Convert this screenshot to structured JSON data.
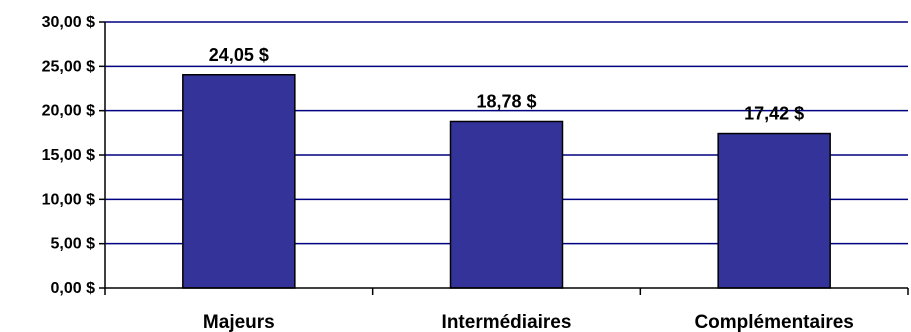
{
  "chart_data": {
    "type": "bar",
    "categories": [
      "Majeurs",
      "Intermédiaires",
      "Complémentaires"
    ],
    "values": [
      24.05,
      18.78,
      17.42
    ],
    "data_labels": [
      "24,05 $",
      "18,78 $",
      "17,42 $"
    ],
    "y_ticks": [
      0,
      5,
      10,
      15,
      20,
      25,
      30
    ],
    "y_tick_labels": [
      "0,00 $",
      "5,00 $",
      "10,00 $",
      "15,00 $",
      "20,00 $",
      "25,00 $",
      "30,00 $"
    ],
    "ylim": [
      0,
      30
    ],
    "grid": true,
    "title": "",
    "xlabel": "",
    "ylabel": "",
    "bar_color": "#333399",
    "grid_color": "#000080"
  }
}
